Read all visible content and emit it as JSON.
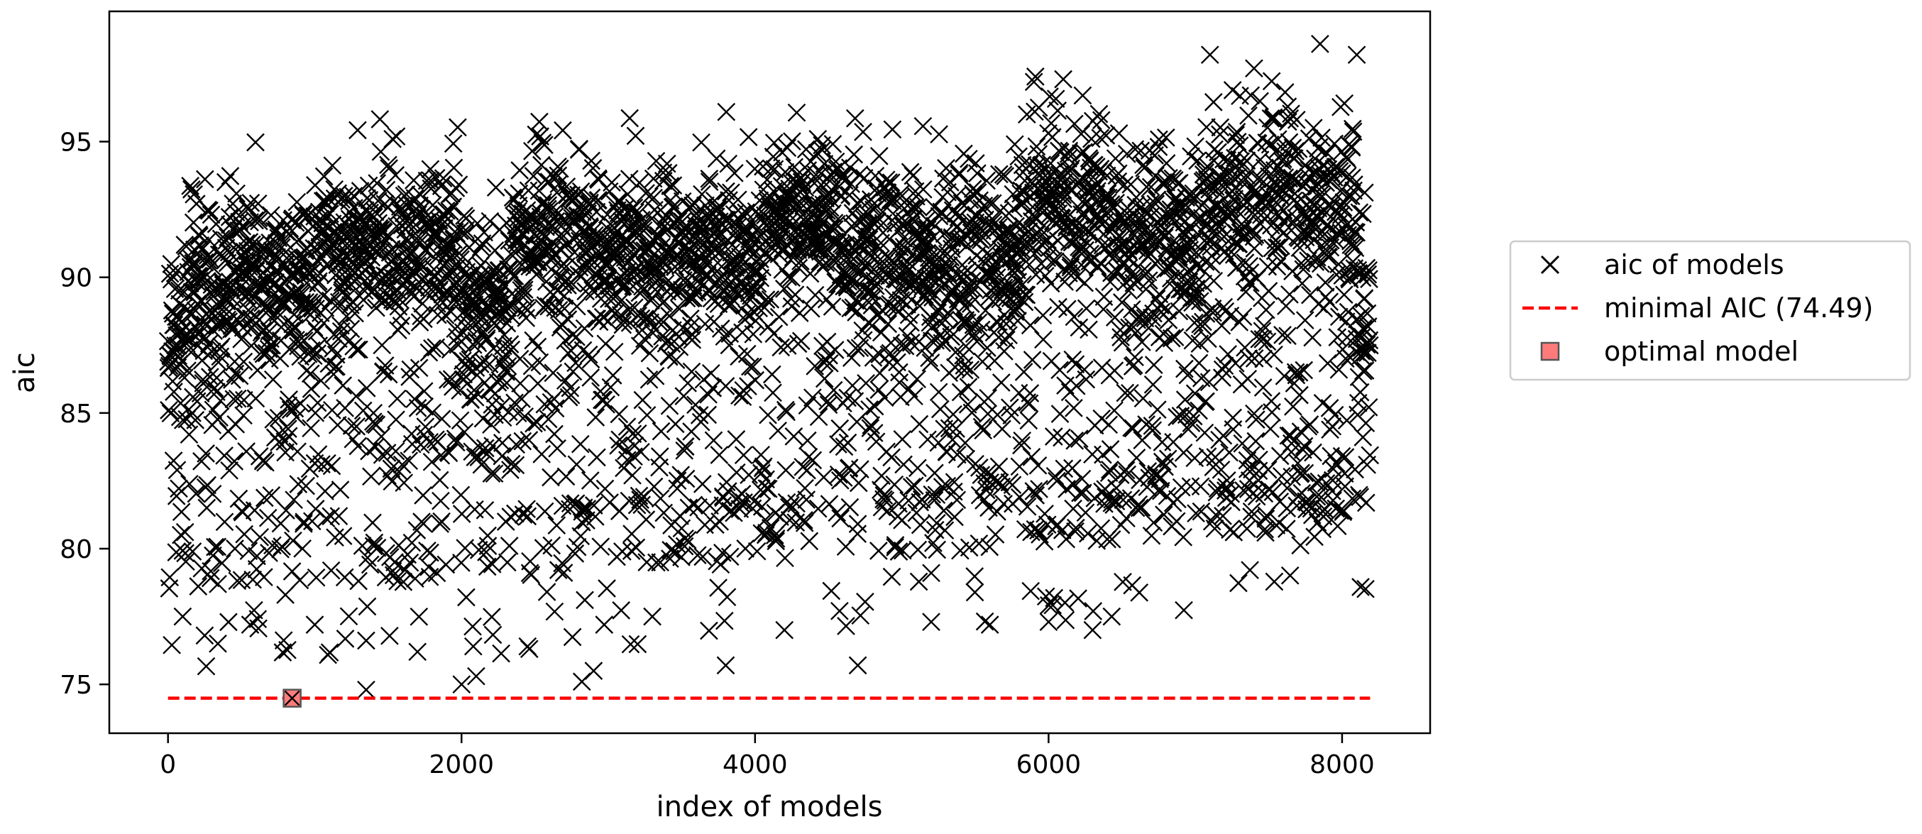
{
  "chart_data": {
    "type": "scatter",
    "title": "",
    "xlabel": "index of models",
    "ylabel": "aic",
    "xlim": [
      -400,
      8600
    ],
    "ylim": [
      73.2,
      99.8
    ],
    "x_ticks": [
      0,
      2000,
      4000,
      6000,
      8000
    ],
    "y_ticks": [
      75,
      80,
      85,
      90,
      95
    ],
    "grid": false,
    "legend_position": "outside-right",
    "series": [
      {
        "name": "aic of models",
        "kind": "scatter",
        "marker": "x",
        "color": "#000000",
        "count": 8191,
        "x_range": [
          0,
          8190
        ],
        "y_range": [
          74.5,
          98.6
        ],
        "highlighted_points": [
          {
            "x": 100,
            "y": 77.5
          },
          {
            "x": 250,
            "y": 76.8
          },
          {
            "x": 340,
            "y": 76.5
          },
          {
            "x": 560,
            "y": 77.2
          },
          {
            "x": 800,
            "y": 78.3
          },
          {
            "x": 1000,
            "y": 77.2
          },
          {
            "x": 1350,
            "y": 74.8
          },
          {
            "x": 1700,
            "y": 76.2
          },
          {
            "x": 2000,
            "y": 75.0
          },
          {
            "x": 2080,
            "y": 76.4
          },
          {
            "x": 2100,
            "y": 75.3
          },
          {
            "x": 2450,
            "y": 76.4
          },
          {
            "x": 2820,
            "y": 75.1
          },
          {
            "x": 2900,
            "y": 75.5
          },
          {
            "x": 3300,
            "y": 77.5
          },
          {
            "x": 3800,
            "y": 75.7
          },
          {
            "x": 4200,
            "y": 77.0
          },
          {
            "x": 4700,
            "y": 75.7
          },
          {
            "x": 5200,
            "y": 77.3
          },
          {
            "x": 5600,
            "y": 77.2
          },
          {
            "x": 6000,
            "y": 77.3
          },
          {
            "x": 6300,
            "y": 77.0
          },
          {
            "x": 6430,
            "y": 77.5
          },
          {
            "x": 7100,
            "y": 98.2
          },
          {
            "x": 7400,
            "y": 97.7
          },
          {
            "x": 7850,
            "y": 98.6
          },
          {
            "x": 8100,
            "y": 98.2
          },
          {
            "x": 5900,
            "y": 97.2
          },
          {
            "x": 6100,
            "y": 97.3
          }
        ]
      },
      {
        "name": "minimal AIC (74.49)",
        "kind": "hline",
        "y": 74.49,
        "x_range": [
          0,
          8191
        ],
        "color": "#ff0000",
        "linestyle": "dashed"
      },
      {
        "name": "optimal model",
        "kind": "point",
        "marker": "square",
        "x": 846,
        "y": 74.49,
        "color": "#ff7b7b"
      }
    ]
  }
}
